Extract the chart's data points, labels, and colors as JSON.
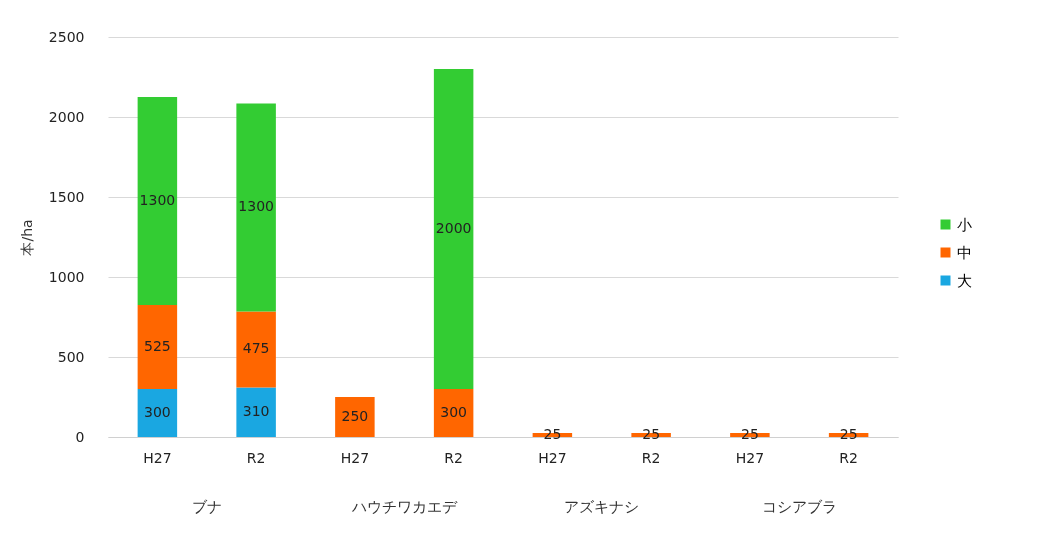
{
  "chart_data": {
    "type": "bar",
    "stacked": true,
    "ylabel": "本/ha",
    "categories": [
      "H27",
      "R2",
      "H27",
      "R2",
      "H27",
      "R2",
      "H27",
      "R2"
    ],
    "series": [
      {
        "name": "大",
        "color": "#1aa7e1",
        "values": [
          300,
          310,
          null,
          null,
          null,
          null,
          null,
          null
        ]
      },
      {
        "name": "中",
        "color": "#ff6600",
        "values": [
          525,
          475,
          250,
          300,
          25,
          25,
          25,
          25
        ]
      },
      {
        "name": "小",
        "color": "#33cc33",
        "values": [
          1300,
          1300,
          null,
          2000,
          null,
          null,
          null,
          null
        ]
      }
    ],
    "annotations": [
      "ブナ",
      "ハウチワカエデ",
      "アズキナシ",
      "コシアブラ"
    ],
    "ylim": [
      0,
      2500
    ],
    "yticks": [
      0,
      500,
      1000,
      1500,
      2000,
      2500
    ],
    "grid": "y",
    "legend": "right",
    "data_labels": true
  }
}
